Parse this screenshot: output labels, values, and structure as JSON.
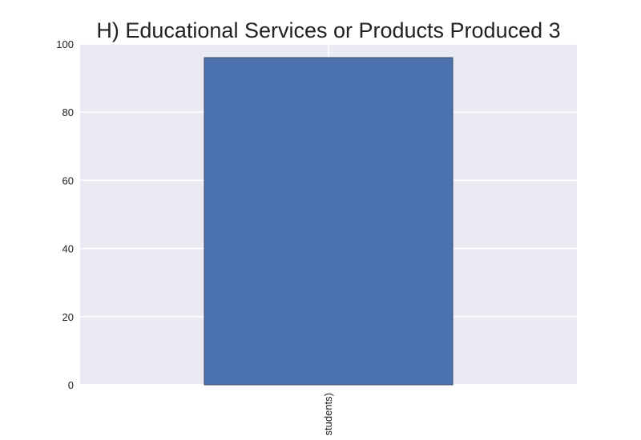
{
  "chart_data": {
    "type": "bar",
    "title": "H) Educational Services or Products Produced 3",
    "categories": [
      "students)"
    ],
    "values": [
      96
    ],
    "xlabel": "",
    "ylabel": "",
    "ylim": [
      0,
      100
    ],
    "yticks": [
      0,
      20,
      40,
      60,
      80,
      100
    ],
    "grid": true,
    "legend": "none",
    "colors": {
      "bar": "#4c72b0",
      "bar_edge": "#3c4b6b",
      "plot_background": "#eaeaf2",
      "grid": "#ffffff",
      "text": "#222222"
    }
  }
}
